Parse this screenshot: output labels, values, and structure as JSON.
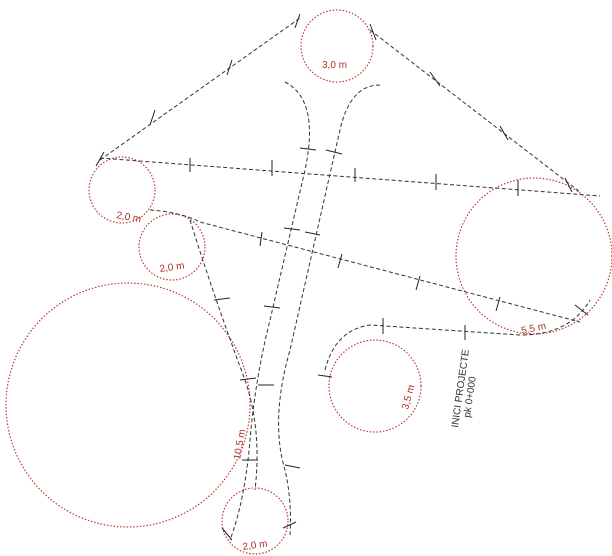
{
  "circles": [
    {
      "label": "3,0 m"
    },
    {
      "label": "2,0 m"
    },
    {
      "label": "2,0 m"
    },
    {
      "label": "10,5 m"
    },
    {
      "label": "2,0 m"
    },
    {
      "label": "3,5 m"
    },
    {
      "label": "5,5 m"
    }
  ],
  "annotation": {
    "lines": [
      "INICI PROJECTE",
      "pk 0+000"
    ]
  }
}
